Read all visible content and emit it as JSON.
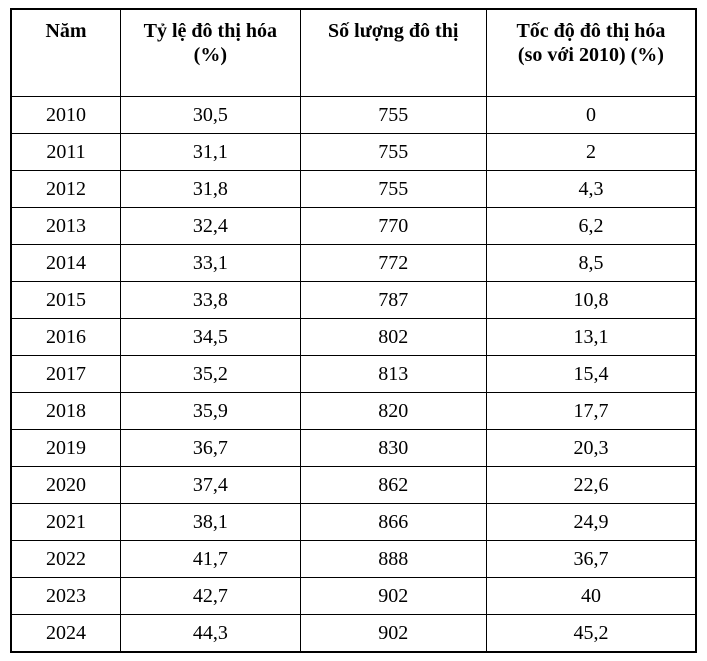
{
  "colors": {
    "border": "#000000",
    "text": "#000000",
    "background": "#ffffff"
  },
  "table": {
    "headers": [
      "Năm",
      "Tỷ lệ đô thị hóa\n(%)",
      "Số lượng đô thị",
      "Tốc độ đô thị hóa\n(so với 2010) (%)"
    ],
    "rows": [
      [
        "2010",
        "30,5",
        "755",
        "0"
      ],
      [
        "2011",
        "31,1",
        "755",
        "2"
      ],
      [
        "2012",
        "31,8",
        "755",
        "4,3"
      ],
      [
        "2013",
        "32,4",
        "770",
        "6,2"
      ],
      [
        "2014",
        "33,1",
        "772",
        "8,5"
      ],
      [
        "2015",
        "33,8",
        "787",
        "10,8"
      ],
      [
        "2016",
        "34,5",
        "802",
        "13,1"
      ],
      [
        "2017",
        "35,2",
        "813",
        "15,4"
      ],
      [
        "2018",
        "35,9",
        "820",
        "17,7"
      ],
      [
        "2019",
        "36,7",
        "830",
        "20,3"
      ],
      [
        "2020",
        "37,4",
        "862",
        "22,6"
      ],
      [
        "2021",
        "38,1",
        "866",
        "24,9"
      ],
      [
        "2022",
        "41,7",
        "888",
        "36,7"
      ],
      [
        "2023",
        "42,7",
        "902",
        "40"
      ],
      [
        "2024",
        "44,3",
        "902",
        "45,2"
      ]
    ]
  },
  "chart_data": {
    "type": "table",
    "title": "",
    "columns": [
      "Năm",
      "Tỷ lệ đô thị hóa (%)",
      "Số lượng đô thị",
      "Tốc độ đô thị hóa (so với 2010) (%)"
    ],
    "years": [
      2010,
      2011,
      2012,
      2013,
      2014,
      2015,
      2016,
      2017,
      2018,
      2019,
      2020,
      2021,
      2022,
      2023,
      2024
    ],
    "series": [
      {
        "name": "Tỷ lệ đô thị hóa (%)",
        "values": [
          30.5,
          31.1,
          31.8,
          32.4,
          33.1,
          33.8,
          34.5,
          35.2,
          35.9,
          36.7,
          37.4,
          38.1,
          41.7,
          42.7,
          44.3
        ]
      },
      {
        "name": "Số lượng đô thị",
        "values": [
          755,
          755,
          755,
          770,
          772,
          787,
          802,
          813,
          820,
          830,
          862,
          866,
          888,
          902,
          902
        ]
      },
      {
        "name": "Tốc độ đô thị hóa (so với 2010) (%)",
        "values": [
          0,
          2,
          4.3,
          6.2,
          8.5,
          10.8,
          13.1,
          15.4,
          17.7,
          20.3,
          22.6,
          24.9,
          36.7,
          40,
          45.2
        ]
      }
    ],
    "decimal_separator": ",",
    "grid": true,
    "legend_position": "none"
  }
}
